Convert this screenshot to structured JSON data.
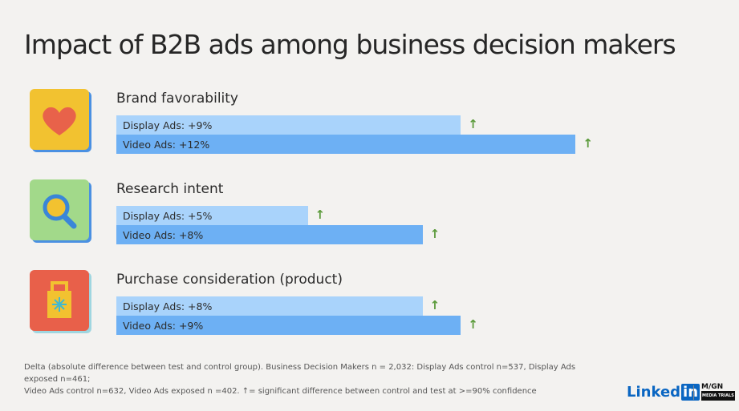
{
  "title": "Impact of B2B ads among business decision makers",
  "chart_data": {
    "type": "bar",
    "orientation": "horizontal",
    "categories": [
      "Brand favorability",
      "Research intent",
      "Purchase consideration (product)"
    ],
    "series": [
      {
        "name": "Display Ads",
        "values": [
          9,
          5,
          8
        ],
        "labels": [
          "Display Ads: +9%",
          "Display Ads: +5%",
          "Display Ads: +8%"
        ],
        "color": "#a9d3fb"
      },
      {
        "name": "Video Ads",
        "values": [
          12,
          8,
          9
        ],
        "labels": [
          "Video Ads: +12%",
          "Video Ads: +8%",
          "Video Ads: +9%"
        ],
        "color": "#6db0f4"
      }
    ],
    "significant_marker": "↑",
    "significant_color": "#5a9a3a",
    "icons": [
      "heart-icon",
      "magnifier-icon",
      "shopping-bag-icon"
    ]
  },
  "footnote": [
    "Delta (absolute difference between test and control group). Business Decision Makers n = 2,032: Display Ads control n=537, Display Ads exposed n=461;",
    "Video Ads control n=632, Video Ads exposed n =402. ↑= significant difference between control and test at >=90% confidence"
  ],
  "logos": {
    "linkedin": "Linked",
    "linkedin_in": "in",
    "magna": "MAGNA",
    "magna_sub": "MEDIA TRIALS"
  }
}
